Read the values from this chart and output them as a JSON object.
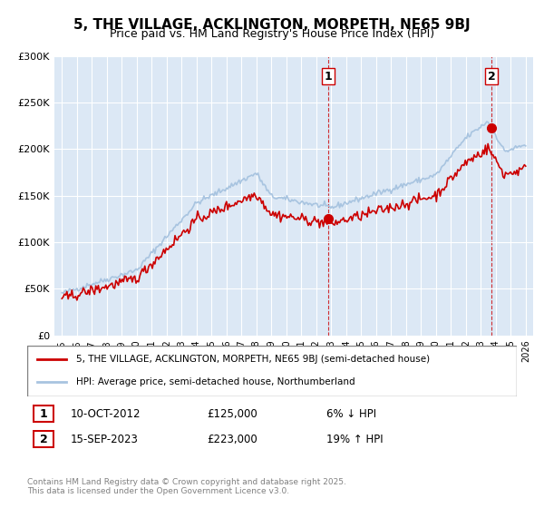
{
  "title": "5, THE VILLAGE, ACKLINGTON, MORPETH, NE65 9BJ",
  "subtitle": "Price paid vs. HM Land Registry's House Price Index (HPI)",
  "legend_line1": "5, THE VILLAGE, ACKLINGTON, MORPETH, NE65 9BJ (semi-detached house)",
  "legend_line2": "HPI: Average price, semi-detached house, Northumberland",
  "transaction1_label": "1",
  "transaction1_date": "10-OCT-2012",
  "transaction1_price": "£125,000",
  "transaction1_hpi": "6% ↓ HPI",
  "transaction2_label": "2",
  "transaction2_date": "15-SEP-2023",
  "transaction2_price": "£223,000",
  "transaction2_hpi": "19% ↑ HPI",
  "footer": "Contains HM Land Registry data © Crown copyright and database right 2025.\nThis data is licensed under the Open Government Licence v3.0.",
  "ylim": [
    0,
    300000
  ],
  "yticks": [
    0,
    50000,
    100000,
    150000,
    200000,
    250000,
    300000
  ],
  "ytick_labels": [
    "£0",
    "£50K",
    "£100K",
    "£150K",
    "£200K",
    "£250K",
    "£300K"
  ],
  "hpi_color": "#a8c4e0",
  "price_color": "#cc0000",
  "transaction_color": "#cc0000",
  "marker_color": "#cc0000",
  "dashed_color": "#cc0000",
  "background_color": "#e8f0f8",
  "plot_bg": "#dce8f5"
}
